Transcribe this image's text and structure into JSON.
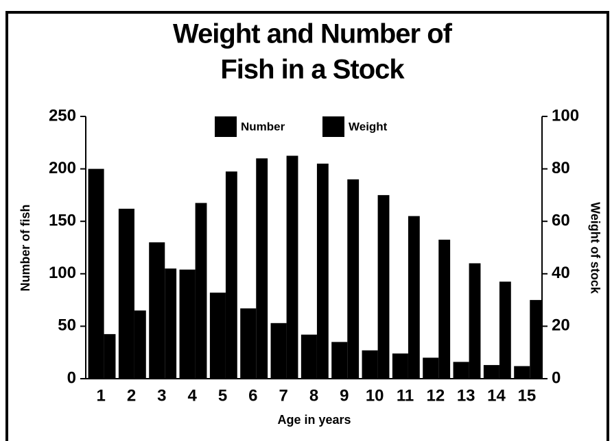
{
  "chart_data": {
    "type": "bar",
    "title": [
      "Weight and Number of",
      "Fish in a Stock"
    ],
    "x_label": "Age in years",
    "y_label": "Number of fish",
    "y2_label": "Weight of stock",
    "categories": [
      "1",
      "2",
      "3",
      "4",
      "5",
      "6",
      "7",
      "8",
      "9",
      "10",
      "11",
      "12",
      "13",
      "14",
      "15"
    ],
    "series": [
      {
        "name": "Number",
        "color": "#000000",
        "values": [
          200,
          162,
          130,
          104,
          82,
          67,
          53,
          42,
          35,
          27,
          24,
          20,
          16,
          13,
          12
        ]
      },
      {
        "name": "Weight",
        "color": "#000000",
        "axis": "y2",
        "values": [
          17,
          26,
          42,
          67,
          79,
          84,
          85,
          82,
          76,
          70,
          62,
          53,
          44,
          37,
          30
        ]
      }
    ],
    "ylim": [
      0,
      250
    ],
    "yticks": [
      0,
      50,
      100,
      150,
      200,
      250
    ],
    "y2lim": [
      0,
      100
    ],
    "y2ticks": [
      0,
      20,
      40,
      60,
      80,
      100
    ],
    "legend": "top"
  }
}
